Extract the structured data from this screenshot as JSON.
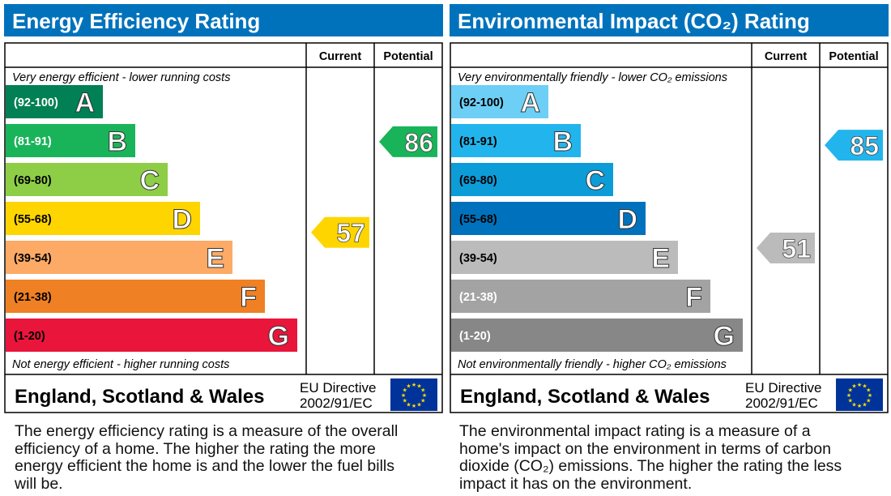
{
  "chart_data": [
    {
      "type": "bar",
      "title": "Energy Efficiency Rating",
      "column_headers": [
        "Current",
        "Potential"
      ],
      "top_note": "Very energy efficient - lower running costs",
      "bottom_note": "Not energy efficient - higher running costs",
      "bands": [
        {
          "letter": "A",
          "range": "(92-100)",
          "min": 92,
          "max": 100,
          "color": "#008054",
          "text_color": "#ffffff"
        },
        {
          "letter": "B",
          "range": "(81-91)",
          "min": 81,
          "max": 91,
          "color": "#19b459",
          "text_color": "#ffffff"
        },
        {
          "letter": "C",
          "range": "(69-80)",
          "min": 69,
          "max": 80,
          "color": "#8dce46",
          "text_color": "#000000"
        },
        {
          "letter": "D",
          "range": "(55-68)",
          "min": 55,
          "max": 68,
          "color": "#ffd500",
          "text_color": "#000000"
        },
        {
          "letter": "E",
          "range": "(39-54)",
          "min": 39,
          "max": 54,
          "color": "#fcaa65",
          "text_color": "#000000"
        },
        {
          "letter": "F",
          "range": "(21-38)",
          "min": 21,
          "max": 38,
          "color": "#ef8023",
          "text_color": "#000000"
        },
        {
          "letter": "G",
          "range": "(1-20)",
          "min": 1,
          "max": 20,
          "color": "#e9153b",
          "text_color": "#000000"
        }
      ],
      "current": {
        "value": 57,
        "band": "D",
        "color": "#ffd500"
      },
      "potential": {
        "value": 86,
        "band": "B",
        "color": "#19b459"
      },
      "footer": {
        "region": "England, Scotland & Wales",
        "directive_line1": "EU Directive",
        "directive_line2": "2002/91/EC"
      },
      "description": "The energy efficiency rating is a measure of the overall efficiency of a home. The higher the rating the more energy efficient the home is and the lower the fuel bills will be."
    },
    {
      "type": "bar",
      "title": "Environmental Impact (CO₂) Rating",
      "column_headers": [
        "Current",
        "Potential"
      ],
      "top_note": "Very environmentally friendly - lower CO₂ emissions",
      "bottom_note": "Not environmentally friendly - higher CO₂ emissions",
      "bands": [
        {
          "letter": "A",
          "range": "(92-100)",
          "min": 92,
          "max": 100,
          "color": "#6dcff6",
          "text_color": "#000000"
        },
        {
          "letter": "B",
          "range": "(81-91)",
          "min": 81,
          "max": 91,
          "color": "#22b5ed",
          "text_color": "#000000"
        },
        {
          "letter": "C",
          "range": "(69-80)",
          "min": 69,
          "max": 80,
          "color": "#0c9cd8",
          "text_color": "#000000"
        },
        {
          "letter": "D",
          "range": "(55-68)",
          "min": 55,
          "max": 68,
          "color": "#0072bd",
          "text_color": "#000000"
        },
        {
          "letter": "E",
          "range": "(39-54)",
          "min": 39,
          "max": 54,
          "color": "#bbbbbb",
          "text_color": "#000000"
        },
        {
          "letter": "F",
          "range": "(21-38)",
          "min": 21,
          "max": 38,
          "color": "#a3a3a3",
          "text_color": "#ffffff"
        },
        {
          "letter": "G",
          "range": "(1-20)",
          "min": 1,
          "max": 20,
          "color": "#878787",
          "text_color": "#ffffff"
        }
      ],
      "current": {
        "value": 51,
        "band": "E",
        "color": "#bbbbbb"
      },
      "potential": {
        "value": 85,
        "band": "B",
        "color": "#22b5ed"
      },
      "footer": {
        "region": "England, Scotland & Wales",
        "directive_line1": "EU Directive",
        "directive_line2": "2002/91/EC"
      },
      "description": "The environmental impact rating is a measure of a home's impact on the environment in terms of carbon dioxide (CO₂) emissions. The higher the rating the less impact it has on the environment."
    }
  ],
  "colors": {
    "header_blue": "#0072bc",
    "eu_flag_blue": "#003399",
    "eu_star_yellow": "#ffdd00"
  }
}
